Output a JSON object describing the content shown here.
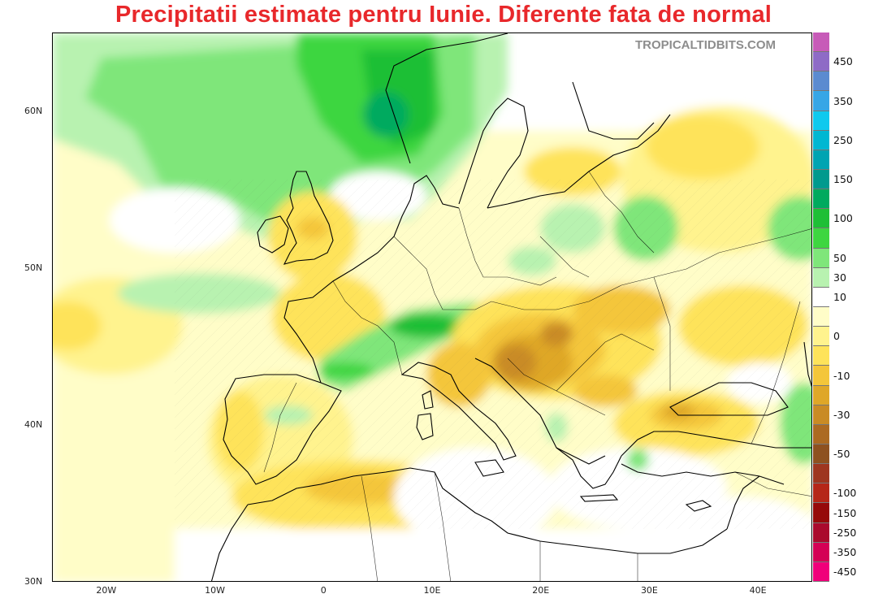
{
  "title": "Precipitatii estimate pentru Iunie. Diferente fata de normal",
  "watermark": "TROPICALTIDBITS.COM",
  "lat_labels": [
    {
      "text": "60N",
      "lat": 60
    },
    {
      "text": "50N",
      "lat": 50
    },
    {
      "text": "40N",
      "lat": 40
    },
    {
      "text": "30N",
      "lat": 30
    }
  ],
  "lon_labels": [
    {
      "text": "20W",
      "lon": -20
    },
    {
      "text": "10W",
      "lon": -10
    },
    {
      "text": "0",
      "lon": 0
    },
    {
      "text": "10E",
      "lon": 10
    },
    {
      "text": "20E",
      "lon": 20
    },
    {
      "text": "30E",
      "lon": 30
    },
    {
      "text": "40E",
      "lon": 40
    }
  ],
  "map_extent": {
    "lon": [
      -25,
      45
    ],
    "lat": [
      30,
      65
    ]
  },
  "colorbar": {
    "colors": [
      "#c75bb8",
      "#8e6bc6",
      "#5b8bd0",
      "#37a6e6",
      "#0fc9ee",
      "#00b7d2",
      "#00a4b2",
      "#009a8e",
      "#00aa5e",
      "#1fbf36",
      "#3ed640",
      "#7fe67a",
      "#b8f2b0",
      "#ffffff",
      "#fffdc8",
      "#fff38e",
      "#fee35a",
      "#f4c63a",
      "#dfa728",
      "#c98b25",
      "#ac6a22",
      "#8e5120",
      "#9e3620",
      "#b52718",
      "#960a0a",
      "#aa0a2d",
      "#d40055",
      "#f0007a"
    ],
    "labels": [
      "450",
      "350",
      "250",
      "150",
      "100",
      "50",
      "30",
      "10",
      "0",
      "-10",
      "-30",
      "-50",
      "-100",
      "-150",
      "-250",
      "-350",
      "-450"
    ],
    "label_after_index": [
      1,
      3,
      5,
      7,
      9,
      11,
      12,
      13,
      15,
      17,
      19,
      21,
      23,
      24,
      25,
      26,
      27
    ]
  },
  "legend_meaning": {
    "green": "above normal",
    "yellow_brown": "below normal"
  }
}
